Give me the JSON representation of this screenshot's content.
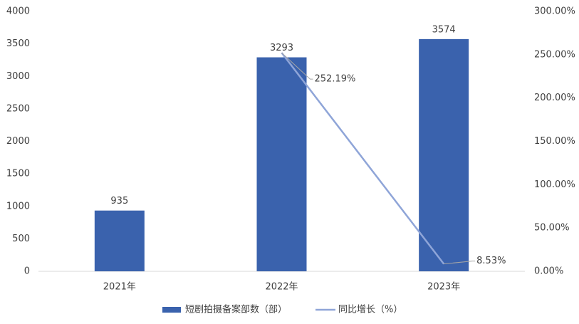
{
  "chart_data": {
    "type": "bar",
    "categories": [
      "2021年",
      "2022年",
      "2023年"
    ],
    "series": [
      {
        "name": "短剧拍摄备案部数（部）",
        "type": "bar",
        "color": "#3a62ad",
        "values": [
          935,
          3293,
          3574
        ]
      },
      {
        "name": "同比增长（%）",
        "type": "line",
        "axis": "y2",
        "color": "#8fa5d8",
        "values": [
          null,
          252.19,
          8.53
        ],
        "value_labels": [
          null,
          "252.19%",
          "8.53%"
        ]
      }
    ],
    "ylim": [
      0,
      4000
    ],
    "yticks": [
      0,
      500,
      1000,
      1500,
      2000,
      2500,
      3000,
      3500,
      4000
    ],
    "y2lim": [
      0,
      300
    ],
    "y2ticks": [
      {
        "value": 0,
        "label": "0.00%"
      },
      {
        "value": 50,
        "label": "50.00%"
      },
      {
        "value": 100,
        "label": "100.00%"
      },
      {
        "value": 150,
        "label": "150.00%"
      },
      {
        "value": 200,
        "label": "200.00%"
      },
      {
        "value": 250,
        "label": "250.00%"
      },
      {
        "value": 300,
        "label": "300.00%"
      }
    ],
    "legend": "bottom"
  }
}
